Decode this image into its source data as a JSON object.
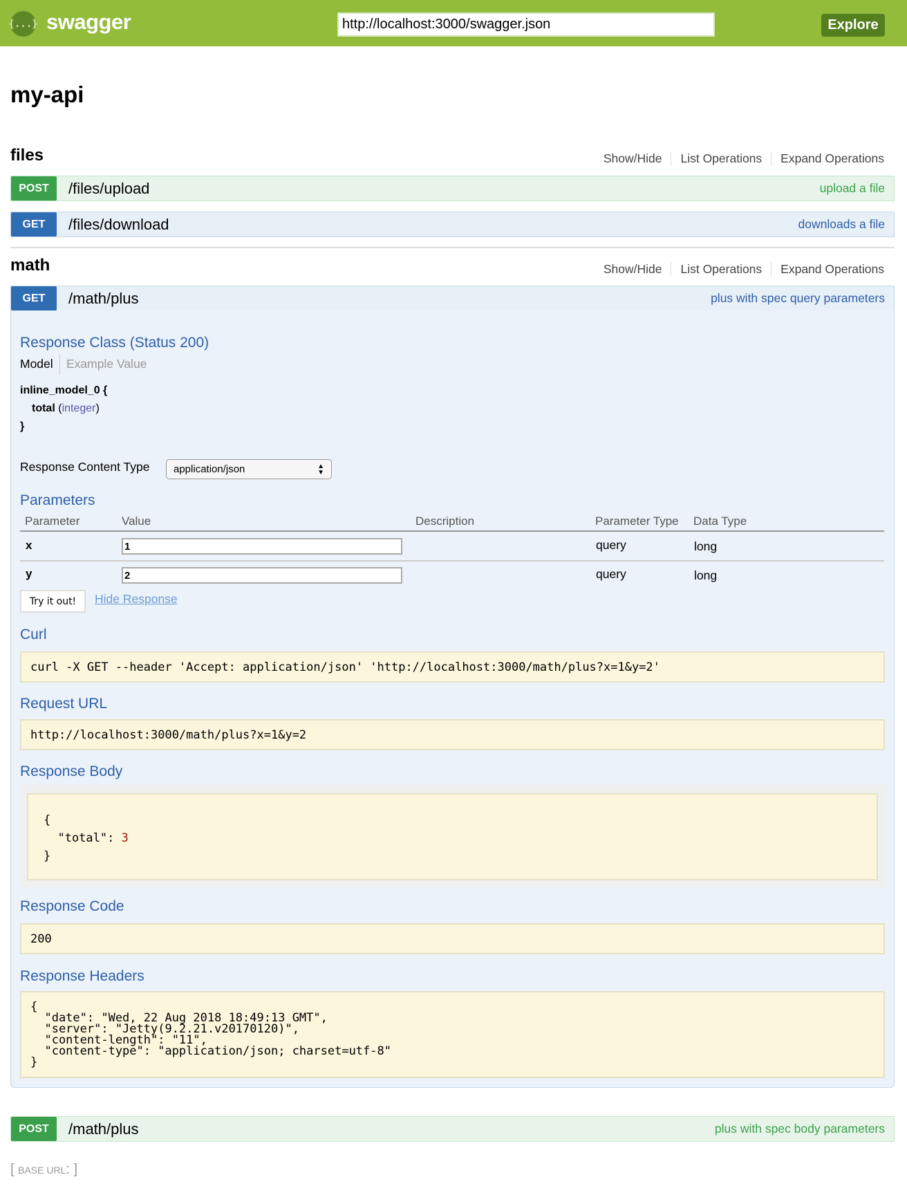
{
  "header": {
    "logo_glyph": "{...}",
    "logo_text": "swagger",
    "url_value": "http://localhost:3000/swagger.json",
    "explore_label": "Explore",
    "accent": "#93bc3b"
  },
  "api_title": "my-api",
  "section_links": {
    "show_hide": "Show/Hide",
    "list": "List Operations",
    "expand": "Expand Operations"
  },
  "sections": [
    {
      "title": "files",
      "operations": [
        {
          "method": "POST",
          "path": "/files/upload",
          "summary": "upload a file"
        },
        {
          "method": "GET",
          "path": "/files/download",
          "summary": "downloads a file"
        }
      ]
    },
    {
      "title": "math",
      "operations": [
        {
          "method": "GET",
          "path": "/math/plus",
          "summary": "plus with spec query parameters"
        },
        {
          "method": "POST",
          "path": "/math/plus",
          "summary": "plus with spec body parameters"
        }
      ]
    }
  ],
  "panel": {
    "response_class": "Response Class (Status 200)",
    "model_tab": "Model",
    "example_tab": "Example Value",
    "model_name": "inline_model_0 {",
    "model_field": "total",
    "model_type": "integer",
    "model_close": "}",
    "content_type_label": "Response Content Type",
    "content_type_value": "application/json",
    "parameters_title": "Parameters",
    "param_headers": [
      "Parameter",
      "Value",
      "Description",
      "Parameter Type",
      "Data Type"
    ],
    "params": [
      {
        "name": "x",
        "value": "1",
        "description": "",
        "param_type": "query",
        "data_type": "long"
      },
      {
        "name": "y",
        "value": "2",
        "description": "",
        "param_type": "query",
        "data_type": "long"
      }
    ],
    "try_label": "Try it out!",
    "hide_label": "Hide Response",
    "curl_title": "Curl",
    "curl": "curl -X GET --header 'Accept: application/json' 'http://localhost:3000/math/plus?x=1&y=2'",
    "request_url_title": "Request URL",
    "request_url": "http://localhost:3000/math/plus?x=1&y=2",
    "response_body_title": "Response Body",
    "body_open": "{",
    "body_key": "  \"total\": ",
    "body_value": "3",
    "body_close": "}",
    "response_code_title": "Response Code",
    "response_code": "200",
    "response_headers_title": "Response Headers",
    "response_headers": "{\n  \"date\": \"Wed, 22 Aug 2018 18:49:13 GMT\",\n  \"server\": \"Jetty(9.2.21.v20170120)\",\n  \"content-length\": \"11\",\n  \"content-type\": \"application/json; charset=utf-8\"\n}"
  },
  "footer": {
    "open": "[ ",
    "label": "BASE URL",
    "colon": ": ",
    "close": "]"
  }
}
